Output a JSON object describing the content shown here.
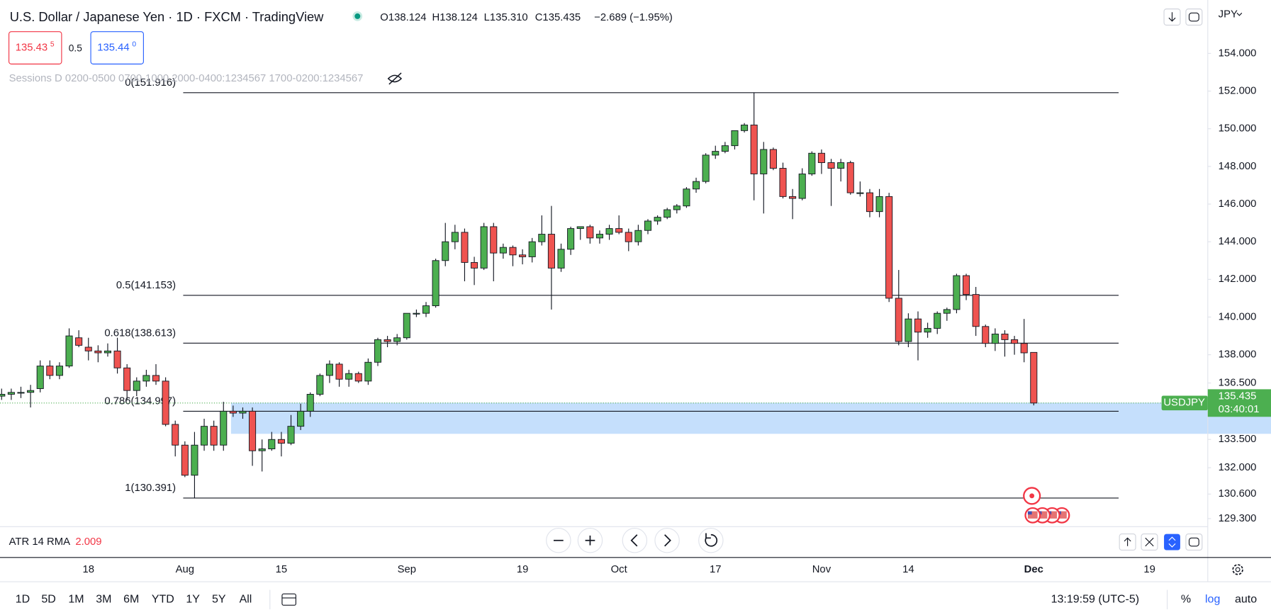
{
  "header": {
    "title": "U.S. Dollar / Japanese Yen · 1D · FXCM · TradingView",
    "ohlc": [
      "O138.124",
      "H138.124",
      "L135.310",
      "C135.435",
      "−2.689 (−1.95%)"
    ],
    "sell_price": "135.43",
    "sell_pip": "5",
    "spread": "0.5",
    "buy_price": "135.44",
    "buy_pip": "0",
    "sessions": "Sessions D 0200-0500 0700-1000 2000-0400:1234567 1700-0200:1234567",
    "currency": "JPY"
  },
  "indicator": {
    "name": "ATR 14 RMA",
    "value": "2.009"
  },
  "toolbar": {
    "ranges": [
      "1D",
      "5D",
      "1M",
      "3M",
      "6M",
      "YTD",
      "1Y",
      "5Y",
      "All"
    ],
    "clock": "13:19:59 (UTC-5)",
    "scale_options": [
      "%",
      "log",
      "auto"
    ]
  },
  "chart_data": {
    "type": "candlestick",
    "symbol": "USDJPY",
    "countdown": "03:40:01",
    "last_price": 135.435,
    "up_color": "#4caf50",
    "down_color": "#ef5350",
    "grid": false,
    "ylim": [
      128.87,
      156.62
    ],
    "yticks": [
      {
        "value": 154,
        "label": "154.000"
      },
      {
        "value": 152,
        "label": "152.000"
      },
      {
        "value": 150,
        "label": "150.000"
      },
      {
        "value": 148,
        "label": "148.000"
      },
      {
        "value": 146,
        "label": "146.000"
      },
      {
        "value": 144,
        "label": "144.000"
      },
      {
        "value": 142,
        "label": "142.000"
      },
      {
        "value": 140,
        "label": "140.000"
      },
      {
        "value": 138,
        "label": "138.000"
      },
      {
        "value": 136.5,
        "label": "136.500"
      },
      {
        "value": 133.5,
        "label": "133.500"
      },
      {
        "value": 132,
        "label": "132.000"
      },
      {
        "value": 130.6,
        "label": "130.600"
      },
      {
        "value": 129.3,
        "label": "129.300"
      }
    ],
    "fib_levels": [
      {
        "label": "0(151.916)",
        "value": 151.916
      },
      {
        "label": "0.5(141.153)",
        "value": 141.153
      },
      {
        "label": "0.618(138.613)",
        "value": 138.613
      },
      {
        "label": "0.786(134.997)",
        "value": 134.997
      },
      {
        "label": "1(130.391)",
        "value": 130.391
      }
    ],
    "zone": {
      "high": 135.45,
      "low": 133.8
    },
    "categories": [
      null,
      null,
      null,
      null,
      null,
      null,
      null,
      null,
      null,
      "18",
      null,
      null,
      null,
      null,
      null,
      null,
      null,
      null,
      null,
      "Aug",
      null,
      null,
      null,
      null,
      null,
      null,
      null,
      null,
      null,
      "15",
      null,
      null,
      null,
      null,
      null,
      null,
      null,
      null,
      null,
      null,
      null,
      null,
      "Sep",
      null,
      null,
      null,
      null,
      null,
      null,
      null,
      null,
      null,
      null,
      null,
      "19",
      null,
      null,
      null,
      null,
      null,
      null,
      null,
      null,
      null,
      "Oct",
      null,
      null,
      null,
      null,
      null,
      null,
      null,
      null,
      null,
      "17",
      null,
      null,
      null,
      null,
      null,
      null,
      null,
      null,
      null,
      null,
      "Nov",
      null,
      null,
      null,
      null,
      null,
      null,
      null,
      null,
      "14",
      null,
      null,
      null,
      null,
      null,
      null,
      null,
      null,
      null,
      null,
      null,
      null,
      "Dec",
      null,
      null,
      null,
      null,
      null,
      null,
      null,
      null,
      null,
      null,
      null,
      "19",
      null,
      null,
      null,
      null,
      null
    ],
    "open": [
      135.8,
      135.9,
      136.0,
      136.0,
      136.2,
      137.4,
      136.9,
      137.4,
      138.9,
      138.4,
      138.2,
      138.1,
      138.2,
      137.3,
      136.1,
      136.6,
      136.9,
      136.6,
      134.3,
      133.2,
      131.6,
      133.2,
      134.2,
      133.2,
      135.0,
      134.9,
      135.0,
      132.9,
      133.0,
      133.5,
      133.3,
      134.2,
      135.0,
      135.9,
      136.9,
      137.5,
      136.7,
      137.0,
      136.6,
      137.6,
      138.8,
      138.7,
      138.9,
      140.2,
      140.2,
      140.6,
      143.0,
      144.0,
      144.5,
      142.9,
      142.6,
      144.8,
      143.4,
      143.7,
      143.3,
      143.2,
      144.0,
      144.4,
      142.6,
      143.6,
      144.7,
      144.8,
      144.2,
      144.4,
      144.7,
      144.5,
      144.0,
      144.6,
      145.1,
      145.3,
      145.7,
      145.9,
      146.8,
      147.2,
      148.6,
      148.8,
      149.1,
      149.9,
      150.2,
      147.6,
      148.9,
      147.9,
      146.4,
      146.3,
      147.6,
      148.7,
      148.2,
      147.9,
      148.2,
      146.6,
      146.6,
      145.6,
      146.4,
      141.0,
      138.7,
      139.9,
      139.2,
      139.4,
      140.2,
      140.4,
      142.2,
      141.2,
      139.5,
      138.6,
      139.1,
      138.8,
      138.6,
      138.124,
      null,
      null,
      null,
      null,
      null,
      null,
      null,
      null,
      null,
      null,
      null,
      null,
      null,
      null,
      null,
      null,
      null
    ],
    "high": [
      136.2,
      136.2,
      136.3,
      136.4,
      137.7,
      137.7,
      137.6,
      139.4,
      139.3,
      138.9,
      138.5,
      138.6,
      138.9,
      137.5,
      136.8,
      137.2,
      137.5,
      136.8,
      134.5,
      133.4,
      133.9,
      134.6,
      134.5,
      135.5,
      135.3,
      135.2,
      135.2,
      133.5,
      133.9,
      133.9,
      134.8,
      135.4,
      136.0,
      137.0,
      137.7,
      137.6,
      137.2,
      137.1,
      137.8,
      138.9,
      139.0,
      139.1,
      140.2,
      140.4,
      140.8,
      143.1,
      145.0,
      144.9,
      144.7,
      143.2,
      145.0,
      145.0,
      143.9,
      143.8,
      143.6,
      144.2,
      145.4,
      145.9,
      143.9,
      144.8,
      144.8,
      144.9,
      144.6,
      144.9,
      145.4,
      144.7,
      144.9,
      145.2,
      145.4,
      145.8,
      146.0,
      146.9,
      147.4,
      148.7,
      149.1,
      149.3,
      149.9,
      150.3,
      151.916,
      149.3,
      149.0,
      148.2,
      146.8,
      147.9,
      148.8,
      148.9,
      148.4,
      148.4,
      148.3,
      147.2,
      146.8,
      146.8,
      146.6,
      142.5,
      140.2,
      140.3,
      139.7,
      140.3,
      140.5,
      142.3,
      142.3,
      141.6,
      139.6,
      139.4,
      139.3,
      139.0,
      139.9,
      138.124,
      null,
      null,
      null,
      null,
      null,
      null,
      null,
      null,
      null,
      null,
      null,
      null,
      null,
      null,
      null,
      null,
      null
    ],
    "low": [
      135.6,
      135.6,
      135.7,
      135.2,
      136.0,
      136.7,
      136.7,
      137.3,
      138.4,
      137.7,
      137.6,
      137.9,
      137.0,
      135.6,
      135.8,
      136.3,
      136.4,
      134.2,
      132.6,
      131.5,
      130.391,
      132.9,
      132.9,
      132.9,
      134.7,
      134.6,
      132.1,
      131.8,
      132.9,
      132.6,
      133.2,
      134.0,
      134.7,
      135.8,
      136.5,
      136.3,
      136.3,
      136.5,
      136.4,
      137.4,
      138.4,
      138.5,
      138.8,
      140.0,
      140.0,
      140.5,
      142.7,
      143.6,
      141.9,
      141.7,
      142.5,
      141.9,
      143.1,
      142.7,
      142.8,
      142.9,
      143.8,
      140.4,
      142.4,
      143.3,
      144.1,
      143.9,
      143.9,
      144.1,
      144.4,
      143.5,
      143.8,
      144.4,
      144.9,
      145.2,
      145.5,
      145.8,
      146.6,
      147.1,
      148.4,
      148.7,
      148.9,
      149.8,
      146.2,
      145.5,
      147.8,
      146.3,
      145.2,
      146.2,
      147.5,
      147.6,
      145.9,
      147.2,
      146.5,
      146.4,
      145.3,
      145.3,
      140.8,
      138.5,
      138.4,
      137.7,
      138.9,
      139.1,
      139.8,
      140.2,
      140.9,
      139.0,
      138.4,
      138.2,
      137.9,
      138.0,
      137.6,
      135.31,
      null,
      null,
      null,
      null,
      null,
      null,
      null,
      null,
      null,
      null,
      null,
      null,
      null,
      null,
      null,
      null,
      null
    ],
    "close": [
      135.9,
      136.0,
      136.0,
      136.1,
      137.4,
      136.9,
      137.4,
      139.0,
      138.5,
      138.2,
      138.1,
      138.2,
      137.3,
      136.1,
      136.6,
      136.9,
      136.6,
      134.3,
      133.2,
      131.6,
      133.2,
      134.2,
      133.2,
      135.0,
      134.9,
      135.0,
      132.9,
      133.0,
      133.5,
      133.3,
      134.2,
      135.0,
      135.9,
      136.9,
      137.5,
      136.7,
      137.0,
      136.6,
      137.6,
      138.8,
      138.7,
      138.9,
      140.2,
      140.2,
      140.6,
      143.0,
      144.0,
      144.5,
      142.9,
      142.6,
      144.8,
      143.4,
      143.7,
      143.3,
      143.2,
      144.0,
      144.4,
      142.6,
      143.6,
      144.7,
      144.8,
      144.2,
      144.4,
      144.7,
      144.5,
      144.0,
      144.6,
      145.1,
      145.3,
      145.7,
      145.9,
      146.8,
      147.2,
      148.6,
      148.8,
      149.1,
      149.9,
      150.2,
      147.6,
      148.9,
      147.9,
      146.4,
      146.3,
      147.6,
      148.7,
      148.2,
      147.9,
      148.2,
      146.6,
      146.6,
      145.6,
      146.4,
      141.0,
      138.7,
      139.9,
      139.2,
      139.4,
      140.2,
      140.4,
      142.2,
      141.2,
      139.5,
      138.6,
      139.1,
      138.8,
      138.6,
      138.1,
      135.435,
      null,
      null,
      null,
      null,
      null,
      null,
      null,
      null,
      null,
      null,
      null,
      null,
      null,
      null,
      null,
      null,
      null
    ]
  }
}
